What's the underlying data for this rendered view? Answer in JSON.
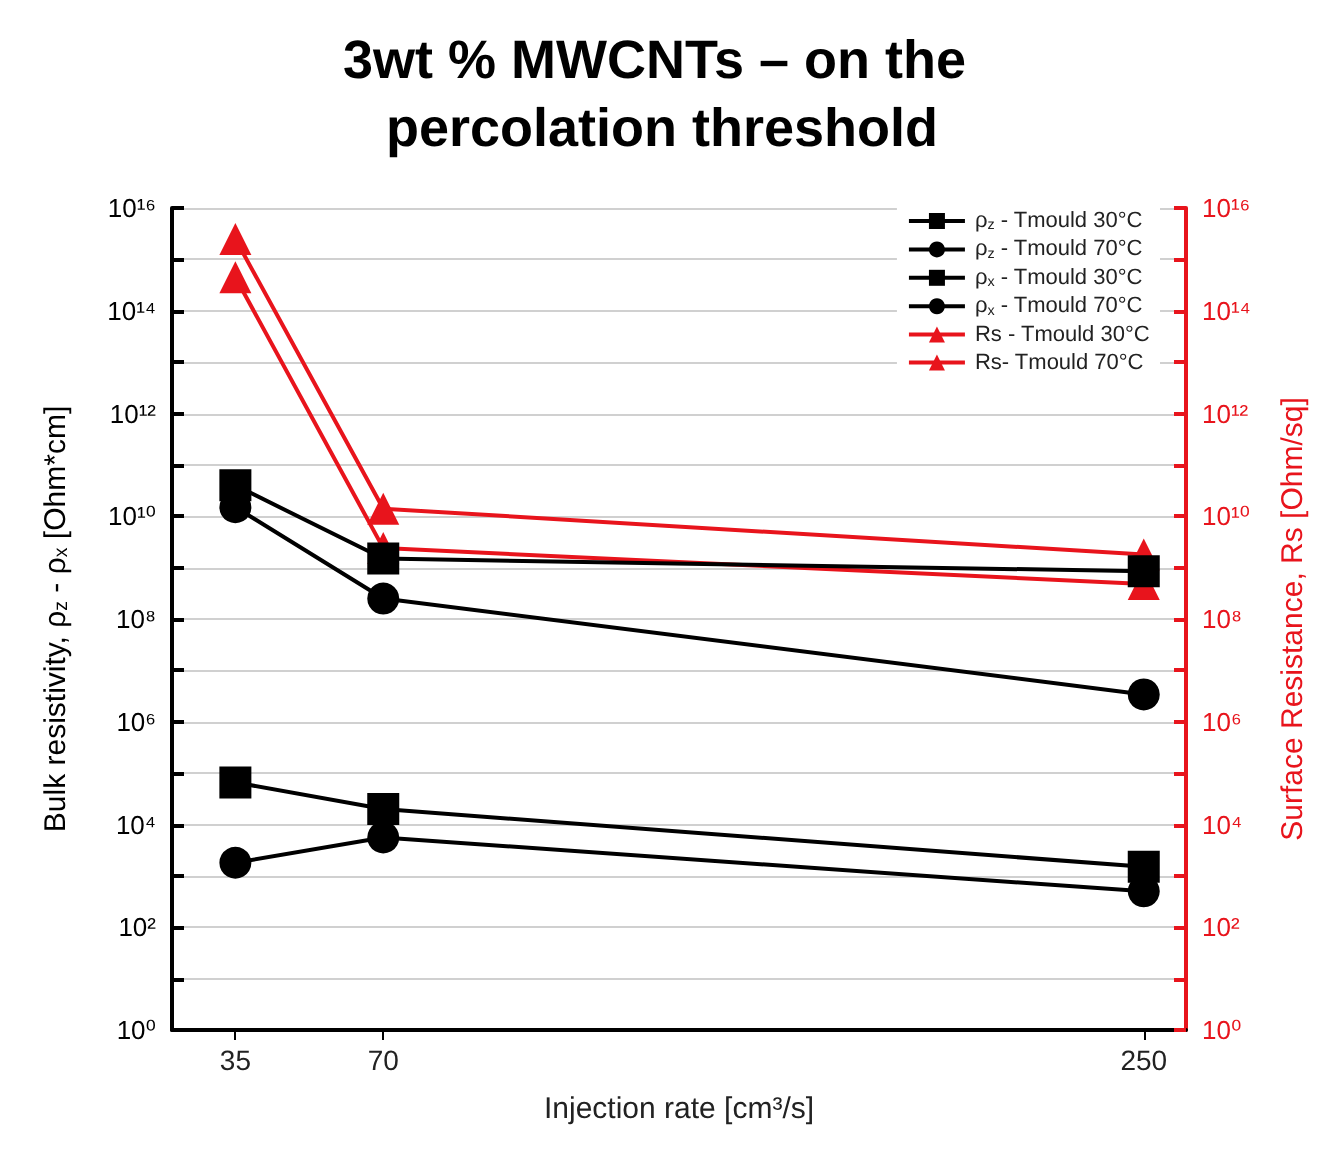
{
  "chart_data": {
    "type": "line",
    "title": "3wt % MWCNTs – on the percolation threshold",
    "xlabel": "Injection rate [cm³/s]",
    "ylabel": "Bulk resistivity, ρ$_{z}$ - ρ$_{x}$ [Ohm*cm]",
    "y2label": "Surface Resistance, Rs [Ohm/sq]",
    "x": [
      35,
      70,
      250
    ],
    "xlim": [
      20,
      260
    ],
    "xticks": [
      35,
      70,
      250
    ],
    "log": "y",
    "ylim": [
      1,
      1e+16
    ],
    "yticks": [
      {
        "value": 1,
        "label": "10⁰"
      },
      {
        "value": 10,
        "label": null
      },
      {
        "value": 100,
        "label": "10²"
      },
      {
        "value": 1000,
        "label": null
      },
      {
        "value": 10000.0,
        "label": "10⁴"
      },
      {
        "value": 100000.0,
        "label": null
      },
      {
        "value": 1000000.0,
        "label": "10⁶"
      },
      {
        "value": 10000000.0,
        "label": null
      },
      {
        "value": 100000000.0,
        "label": "10⁸"
      },
      {
        "value": 1000000000.0,
        "label": null
      },
      {
        "value": 10000000000.0,
        "label": "10¹⁰"
      },
      {
        "value": 100000000000.0,
        "label": null
      },
      {
        "value": 1000000000000.0,
        "label": "10¹²"
      },
      {
        "value": 10000000000000.0,
        "label": null
      },
      {
        "value": 100000000000000.0,
        "label": "10¹⁴"
      },
      {
        "value": 1000000000000000.0,
        "label": null
      },
      {
        "value": 1e+16,
        "label": "10¹⁶"
      }
    ],
    "grid": "y",
    "legend": "top right",
    "line_style": "solid",
    "series": [
      {
        "name": "ρ$_{z}$ - Tmould 30°C",
        "color": "#000000",
        "marker": "square",
        "values": [
          40000000000.0,
          1500000000.0,
          850000000.0
        ]
      },
      {
        "name": "ρ$_{z}$ - Tmould 70°C",
        "color": "#000000",
        "marker": "circle",
        "values": [
          15000000000.0,
          250000000.0,
          3400000.0
        ]
      },
      {
        "name": "ρ$_{x}$ - Tmould 30°C",
        "color": "#000000",
        "marker": "square",
        "values": [
          66000.0,
          20000.0,
          1500.0
        ]
      },
      {
        "name": "ρ$_{x}$ - Tmould 70°C",
        "color": "#000000",
        "marker": "circle",
        "values": [
          1800.0,
          5600.0,
          500.0
        ]
      },
      {
        "name": "Rs - Tmould 30°C",
        "color": "#e8141c",
        "marker": "triangle",
        "values": [
          2500000000000000.0,
          14000000000.0,
          1800000000.0
        ]
      },
      {
        "name": "Rs- Tmould 70°C",
        "color": "#e8141c",
        "marker": "triangle",
        "values": [
          450000000000000.0,
          2400000000.0,
          480000000.0
        ]
      }
    ]
  }
}
